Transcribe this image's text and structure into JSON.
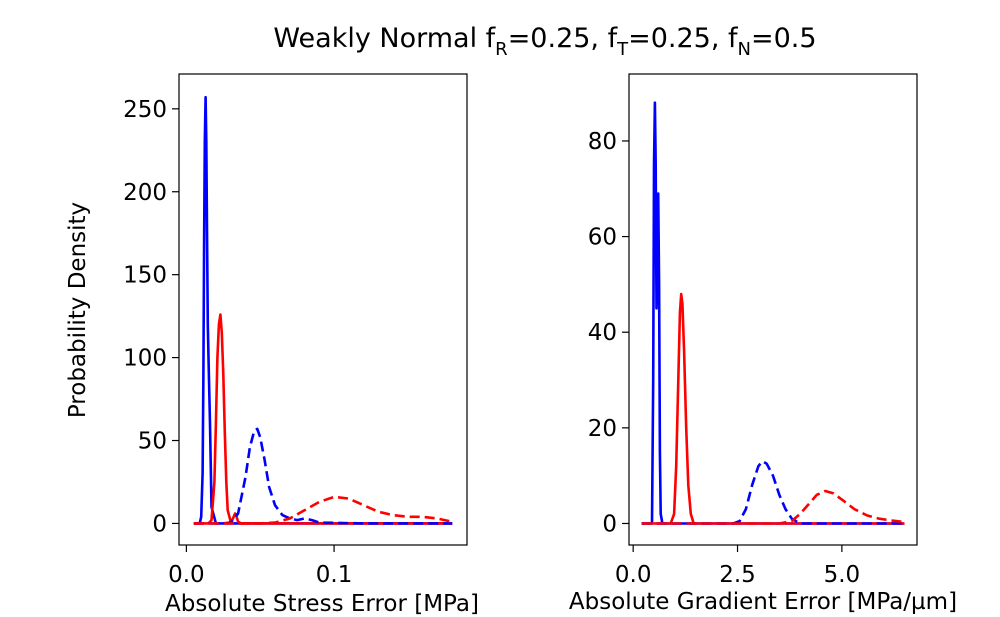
{
  "figure": {
    "title_parts": {
      "prefix": "Weakly Normal f",
      "sub_r": "R",
      "val_r": "=0.25, f",
      "sub_t": "T",
      "val_t": "=0.25, f",
      "sub_n": "N",
      "val_n": "=0.5"
    }
  },
  "colors": {
    "blue": "#0000ff",
    "red": "#ff0000",
    "axis": "#000000"
  },
  "chart_data": [
    {
      "type": "line",
      "title": "",
      "xlabel": "Absolute Stress Error [MPa]",
      "ylabel": "Probability Density",
      "xlim": [
        -0.005,
        0.19
      ],
      "ylim": [
        -13,
        271
      ],
      "xticks": [
        0.0,
        0.1
      ],
      "xtick_labels": [
        "0.0",
        "0.1"
      ],
      "yticks": [
        0,
        50,
        100,
        150,
        200,
        250
      ],
      "ytick_labels": [
        "0",
        "50",
        "100",
        "150",
        "200",
        "250"
      ],
      "series": [
        {
          "name": "blue-solid",
          "color": "#0000ff",
          "dash": "solid",
          "x": [
            0.005,
            0.009,
            0.01,
            0.011,
            0.0115,
            0.012,
            0.0125,
            0.013,
            0.0135,
            0.014,
            0.0145,
            0.015,
            0.016,
            0.017,
            0.02,
            0.025,
            0.05,
            0.1,
            0.18
          ],
          "y": [
            0,
            0,
            4,
            30,
            90,
            170,
            230,
            257,
            230,
            170,
            120,
            100,
            60,
            10,
            0,
            0,
            0,
            0,
            0
          ]
        },
        {
          "name": "red-solid",
          "color": "#ff0000",
          "dash": "solid",
          "x": [
            0.005,
            0.015,
            0.017,
            0.019,
            0.02,
            0.021,
            0.022,
            0.023,
            0.024,
            0.025,
            0.026,
            0.027,
            0.028,
            0.03,
            0.031,
            0.033,
            0.034,
            0.035,
            0.037,
            0.04,
            0.1,
            0.18
          ],
          "y": [
            0,
            0,
            2,
            25,
            60,
            100,
            120,
            126,
            115,
            90,
            55,
            25,
            8,
            1,
            2,
            6,
            4,
            1,
            0,
            0,
            0,
            0
          ]
        },
        {
          "name": "blue-dashed",
          "color": "#0000ff",
          "dash": "dashed",
          "x": [
            0.005,
            0.025,
            0.03,
            0.035,
            0.04,
            0.043,
            0.046,
            0.048,
            0.05,
            0.053,
            0.056,
            0.06,
            0.065,
            0.07,
            0.075,
            0.08,
            0.085,
            0.09,
            0.12,
            0.18
          ],
          "y": [
            0,
            0,
            0.5,
            6,
            28,
            46,
            56,
            57,
            52,
            38,
            22,
            11,
            5,
            3,
            2,
            3,
            2,
            0.5,
            0,
            0
          ]
        },
        {
          "name": "red-dashed",
          "color": "#ff0000",
          "dash": "dashed",
          "x": [
            0.005,
            0.05,
            0.06,
            0.07,
            0.08,
            0.09,
            0.1,
            0.11,
            0.12,
            0.13,
            0.14,
            0.15,
            0.16,
            0.17,
            0.18
          ],
          "y": [
            0,
            0,
            0.5,
            3,
            8,
            13,
            16,
            15,
            11,
            7,
            5,
            4,
            4,
            3,
            1
          ]
        }
      ]
    },
    {
      "type": "line",
      "title": "",
      "xlabel": "Absolute Gradient Error [MPa/µm]",
      "ylabel": "",
      "xlim": [
        -0.1,
        6.8
      ],
      "ylim": [
        -4.5,
        94
      ],
      "xticks": [
        0.0,
        2.5,
        5.0
      ],
      "xtick_labels": [
        "0.0",
        "2.5",
        "5.0"
      ],
      "yticks": [
        0,
        20,
        40,
        60,
        80
      ],
      "ytick_labels": [
        "0",
        "20",
        "40",
        "60",
        "80"
      ],
      "series": [
        {
          "name": "blue-solid",
          "color": "#0000ff",
          "dash": "solid",
          "x": [
            0.2,
            0.45,
            0.48,
            0.5,
            0.52,
            0.54,
            0.56,
            0.58,
            0.6,
            0.62,
            0.64,
            0.66,
            0.7,
            1.0,
            6.5
          ],
          "y": [
            0,
            0,
            30,
            75,
            88,
            75,
            45,
            55,
            69,
            50,
            15,
            2,
            0,
            0,
            0
          ]
        },
        {
          "name": "red-solid",
          "color": "#ff0000",
          "dash": "solid",
          "x": [
            0.2,
            0.9,
            0.98,
            1.03,
            1.08,
            1.12,
            1.15,
            1.18,
            1.22,
            1.27,
            1.32,
            1.38,
            1.45,
            2.0,
            6.5
          ],
          "y": [
            0,
            0,
            2,
            12,
            30,
            44,
            48,
            46,
            36,
            20,
            8,
            2,
            0,
            0,
            0
          ]
        },
        {
          "name": "blue-dashed",
          "color": "#0000ff",
          "dash": "dashed",
          "x": [
            0.2,
            2.4,
            2.55,
            2.7,
            2.85,
            3.0,
            3.1,
            3.2,
            3.35,
            3.5,
            3.65,
            3.8,
            4.0,
            4.2,
            6.5
          ],
          "y": [
            0,
            0,
            0.5,
            3,
            8,
            12,
            13,
            12.5,
            10,
            6,
            3,
            1,
            0,
            0,
            0
          ]
        },
        {
          "name": "red-dashed",
          "color": "#ff0000",
          "dash": "dashed",
          "x": [
            0.2,
            3.5,
            3.8,
            4.0,
            4.2,
            4.4,
            4.6,
            4.8,
            5.0,
            5.3,
            5.6,
            5.9,
            6.2,
            6.5
          ],
          "y": [
            0,
            0,
            0.5,
            2,
            4,
            6,
            6.8,
            6.3,
            5,
            3,
            1.7,
            1,
            0.6,
            0.3
          ]
        }
      ]
    }
  ]
}
